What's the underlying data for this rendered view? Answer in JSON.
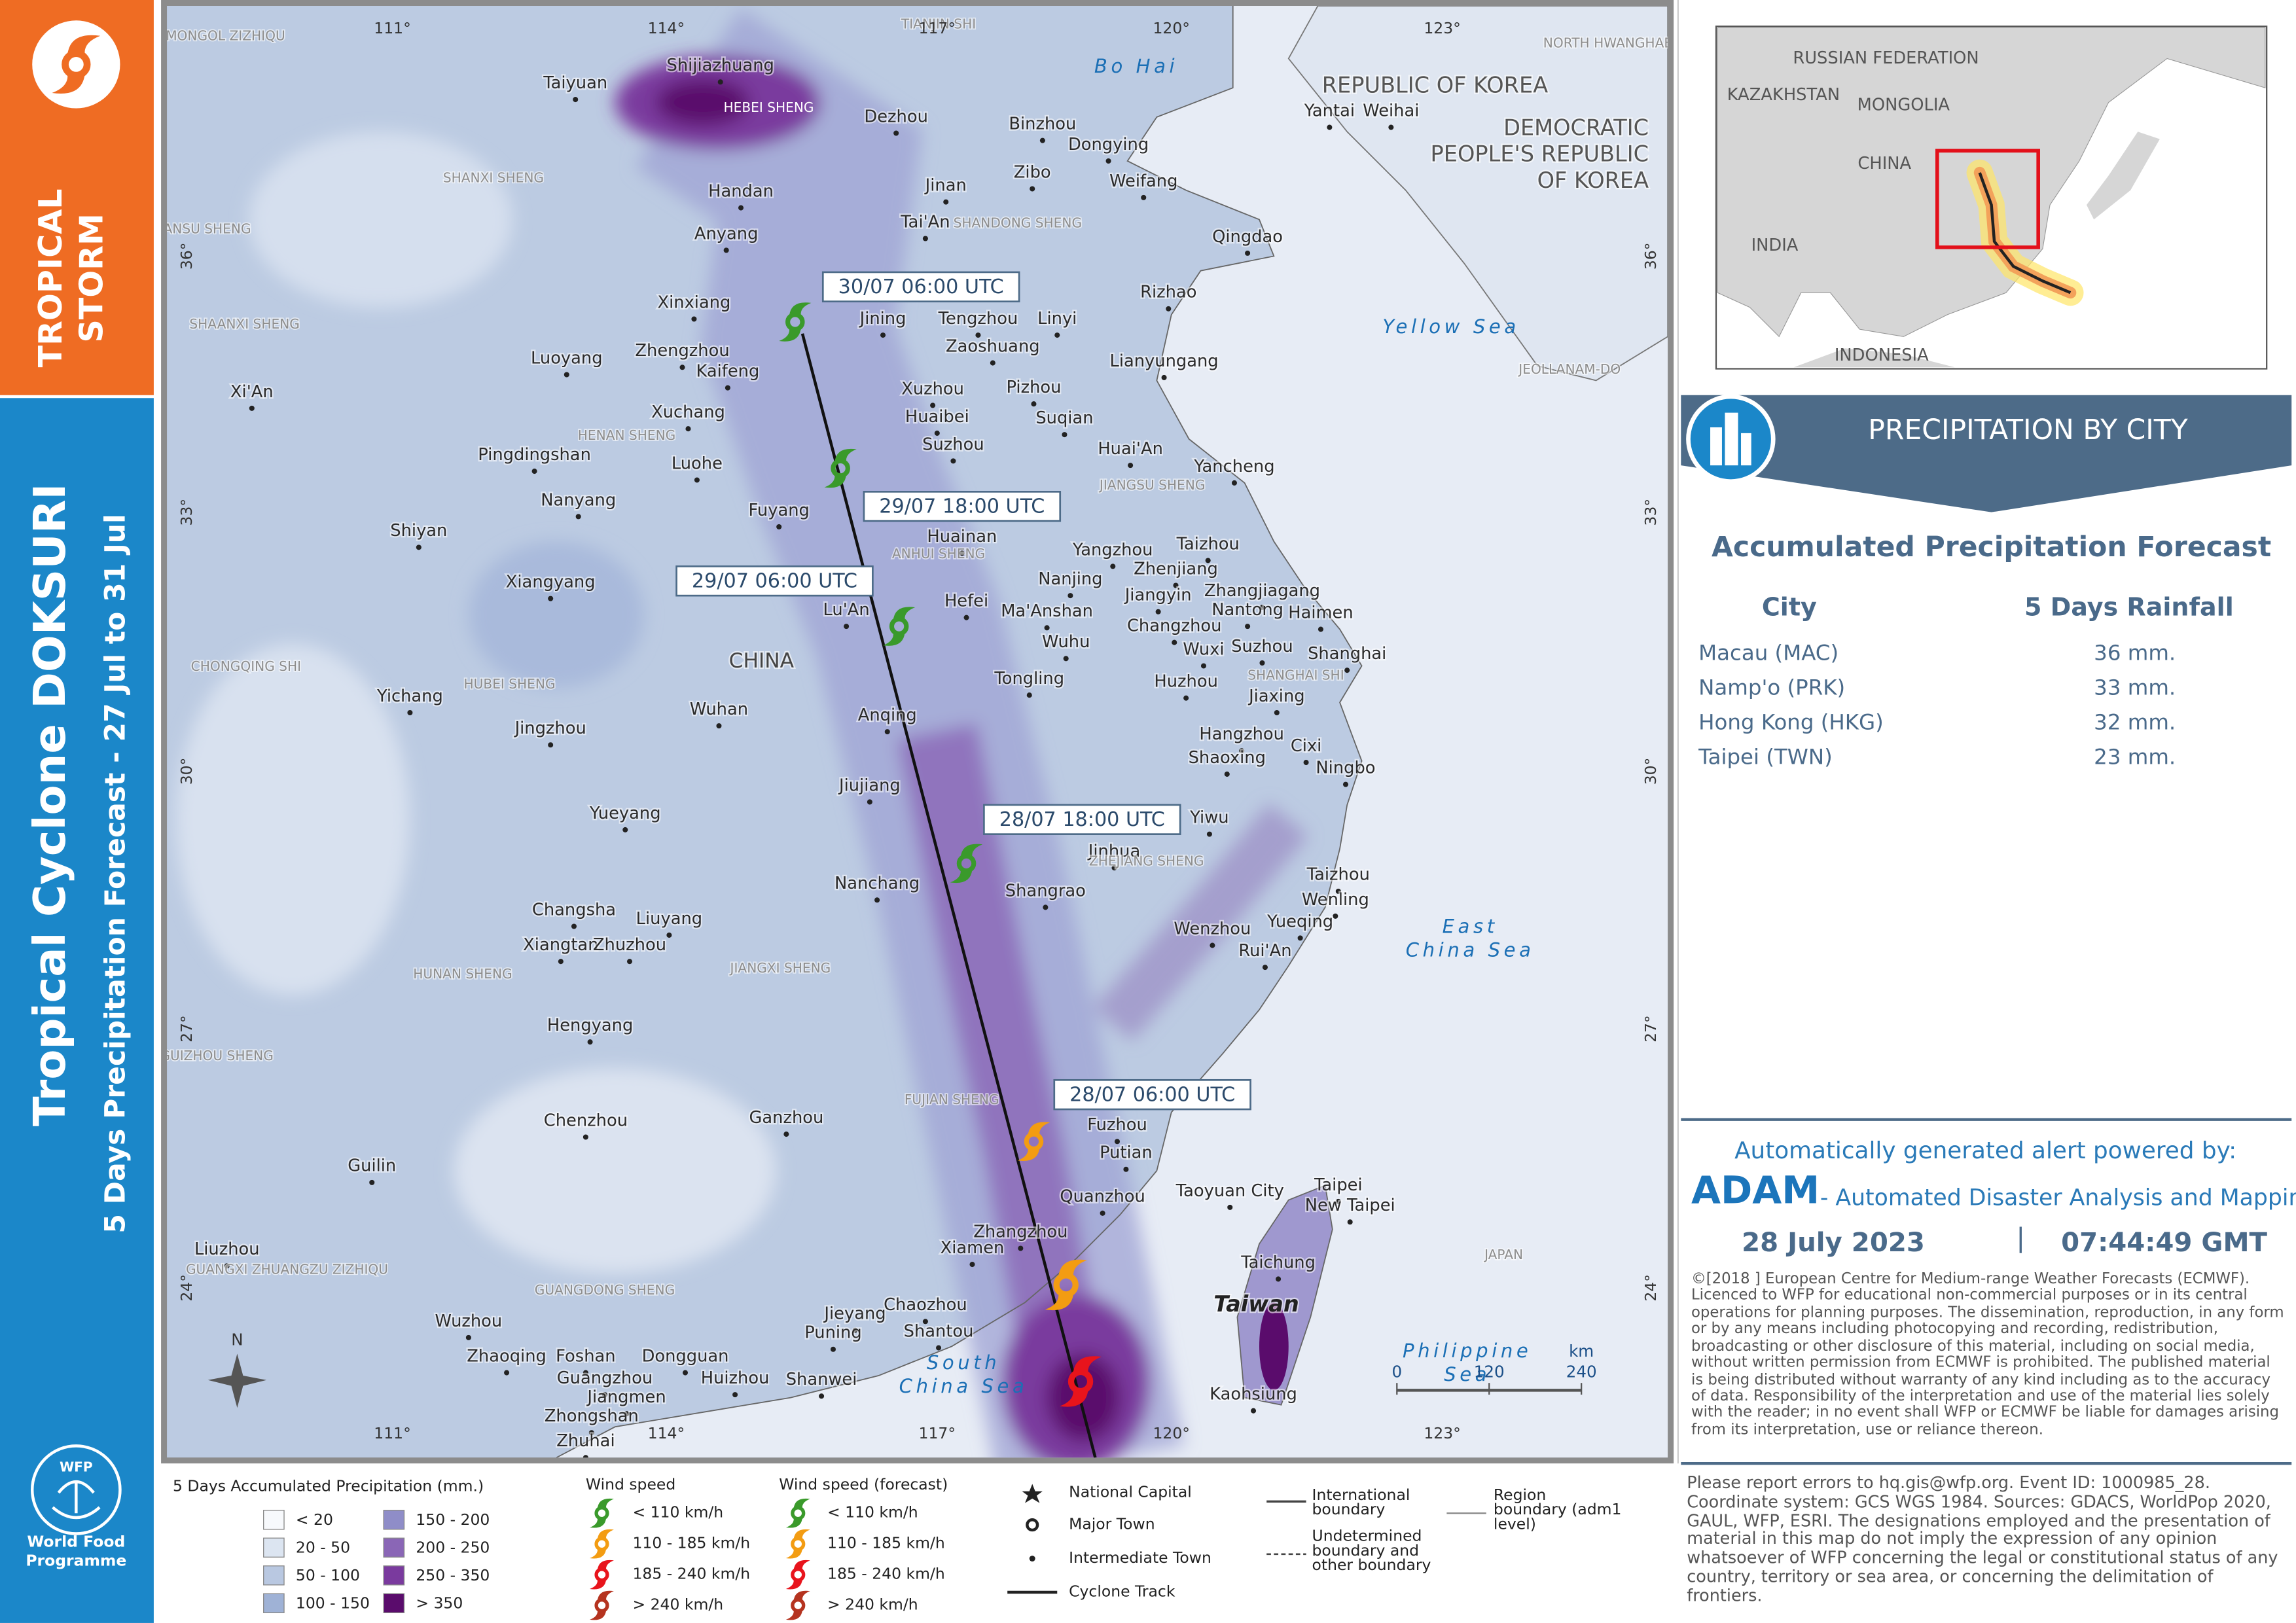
{
  "sidebar": {
    "category_lines": [
      "TROPICAL",
      "STORM"
    ],
    "title": "Tropical Cyclone DOKSURI",
    "subtitle": "5 Days Precipitation Forecast - 27 Jul to 31 Jul",
    "logo_text": "WFP",
    "org_lines": [
      "World Food",
      "Programme"
    ]
  },
  "map": {
    "lon_ticks": [
      "111°",
      "114°",
      "117°",
      "120°",
      "123°"
    ],
    "lat_ticks": [
      "36°",
      "33°",
      "30°",
      "27°",
      "24°"
    ],
    "cities": [
      "Taiyuan",
      "Shijiazhuang",
      "Dezhou",
      "Binzhou",
      "Dongying",
      "Yantai",
      "Weihai",
      "Handan",
      "Jinan",
      "Zibo",
      "Weifang",
      "Anyang",
      "Tai'An",
      "Qingdao",
      "Xinxiang",
      "Jining",
      "Tengzhou",
      "Linyi",
      "Rizhao",
      "Luoyang",
      "Zhengzhou",
      "Kaifeng",
      "Zaoshuang",
      "Lianyungang",
      "Xi'An",
      "Xuchang",
      "Xuzhou",
      "Pizhou",
      "Huaibei",
      "Suqian",
      "Suzhou",
      "Huai'An",
      "Pingdingshan",
      "Luohe",
      "Yancheng",
      "Nanyang",
      "Fuyang",
      "Shiyan",
      "Huainan",
      "Taizhou",
      "Yangzhou",
      "Zhenjiang",
      "Xiangyang",
      "Nanjing",
      "Ma'Anshan",
      "Jiangyin",
      "Zhangjiagang",
      "Nantong",
      "Haimen",
      "Lu'An",
      "Hefei",
      "Changzhou",
      "Wuhu",
      "Wuxi",
      "Suzhou",
      "Shanghai",
      "Tongling",
      "Huzhou",
      "Yichang",
      "Jiaxing",
      "Wuhan",
      "Anqing",
      "Jingzhou",
      "Hangzhou",
      "Shaoxing",
      "Cixi",
      "Ningbo",
      "Jiujiang",
      "Yiwu",
      "Yueyang",
      "Jinhua",
      "Nanchang",
      "Shangrao",
      "Taizhou",
      "Wenling",
      "Changsha",
      "Liuyang",
      "Wenzhou",
      "Yueqing",
      "Xiangtan",
      "Zhuzhou",
      "Rui'An",
      "Hengyang",
      "Chenzhou",
      "Ganzhou",
      "Fuzhou",
      "Putian",
      "Guilin",
      "Quanzhou",
      "Taoyuan City",
      "Taipei",
      "New Taipei",
      "Zhangzhou",
      "Xiamen",
      "Liuzhou",
      "Taichung",
      "Jieyang",
      "Chaozhou",
      "Puning",
      "Shantou",
      "Wuzhou",
      "Zhaoqing",
      "Foshan",
      "Dongguan",
      "Guangzhou",
      "Huizhou",
      "Shanwei",
      "Kaohsiung",
      "Jiangmen",
      "Zhongshan",
      "Zhuhai"
    ],
    "regions": [
      "HEBEI SHENG",
      "SHANXI SHENG",
      "SHANDONG SHENG",
      "HENAN SHENG",
      "ANHUI SHENG",
      "JIANGSU SHENG",
      "HUBEI SHENG",
      "SHANGHAI SHI",
      "CHONGQING SHI",
      "ZHEJIANG SHENG",
      "JIANGXI SHENG",
      "HUNAN SHENG",
      "FUJIAN SHENG",
      "GUIZHOU SHENG",
      "GUANGXI ZHUANGZU ZIZHIQU",
      "GUANGDONG SHENG",
      "SHAANXI SHENG",
      "GANSU SHENG",
      "NEI MONGOL ZIZHIQU",
      "TIANJIN SHI",
      "JEOLLANAM-DO",
      "NORTH HWANGHAE",
      "JAPAN"
    ],
    "countries": [
      [
        "CHINA"
      ],
      [
        "REPUBLIC OF KOREA"
      ],
      [
        "DEMOCRATIC",
        "PEOPLE'S REPUBLIC",
        "OF KOREA"
      ],
      [
        "Taiwan"
      ]
    ],
    "seas": [
      [
        "Bo Hai"
      ],
      [
        "Yellow Sea"
      ],
      [
        "East",
        "China Sea"
      ],
      [
        "South",
        "China Sea"
      ],
      [
        "Philippine",
        "Sea"
      ]
    ],
    "track_labels": [
      "30/07 06:00 UTC",
      "29/07 18:00 UTC",
      "29/07 06:00 UTC",
      "28/07 18:00 UTC",
      "28/07 06:00 UTC"
    ],
    "north": "N",
    "scale_unit": "km",
    "scale_ticks": [
      "0",
      "120",
      "240"
    ]
  },
  "inset": {
    "labels": [
      "RUSSIAN FEDERATION",
      "KAZAKHSTAN",
      "MONGOLIA",
      "CHINA",
      "INDIA",
      "INDONESIA"
    ]
  },
  "city_panel": {
    "title": "PRECIPITATION BY CITY",
    "subtitle": "Accumulated Precipitation Forecast",
    "columns": [
      "City",
      "5 Days Rainfall"
    ],
    "rows": [
      [
        "Macau (MAC)",
        "36 mm."
      ],
      [
        "Namp'o (PRK)",
        "33 mm."
      ],
      [
        "Hong Kong (HKG)",
        "32 mm."
      ],
      [
        "Taipei (TWN)",
        "23 mm."
      ]
    ]
  },
  "alert": {
    "intro": "Automatically generated alert powered by:",
    "brand": "ADAM",
    "brand_desc": "- Automated Disaster Analysis and Mapping",
    "date": "28 July 2023",
    "separator": "|",
    "time": "07:44:49 GMT",
    "copyright": "©[2018 ]  European Centre for Medium-range Weather Forecasts (ECMWF). Licenced to WFP for educational non-commercial purposes or in its central operations for planning purposes. The dissemination, reproduction, in any form or by any means including photocopying and recording, redistribution, broadcasting or other disclosure of this material, including on social media, without written permission from ECMWF is prohibited. The published material is being distributed without warranty of any kind including as to the accuracy of data. Responsibility of the interpretation and use of the material lies solely with the reader; in no event shall WFP or ECMWF be liable for damages arising from its interpretation, use or reliance thereon."
  },
  "legend": {
    "precip_title": "5 Days Accumulated Precipitation (mm.)",
    "precip_classes": [
      {
        "label": "< 20",
        "color": "#f7f9fc"
      },
      {
        "label": "20 - 50",
        "color": "#dce5f1"
      },
      {
        "label": "50 - 100",
        "color": "#b9c8e1"
      },
      {
        "label": "100 - 150",
        "color": "#9fb2d6"
      },
      {
        "label": "150 - 200",
        "color": "#8f8dc8"
      },
      {
        "label": "200 - 250",
        "color": "#8a66b6"
      },
      {
        "label": "250 - 350",
        "color": "#7a3a9e"
      },
      {
        "label": "> 350",
        "color": "#5a0c6c"
      }
    ],
    "wind_title": "Wind speed",
    "wind_forecast_title": "Wind speed (forecast)",
    "wind_classes": [
      {
        "label": "< 110 km/h",
        "color": "#3a9a2b"
      },
      {
        "label": "110 - 185 km/h",
        "color": "#f39c12"
      },
      {
        "label": "185 - 240 km/h",
        "color": "#e8141c"
      },
      {
        "label": "> 240 km/h",
        "color": "#b5331f"
      }
    ],
    "symbols": [
      [
        "National Capital"
      ],
      [
        "Major Town"
      ],
      [
        "Intermediate Town"
      ],
      [
        "Cyclone Track"
      ],
      [
        "International",
        "boundary"
      ],
      [
        "Undetermined",
        "boundary and",
        "other boundary"
      ],
      [
        "Region",
        "boundary (adm1",
        "level)"
      ]
    ]
  },
  "footer": "Please report errors to hq.gis@wfp.org. Event ID: 1000985_28. Coordinate system: GCS WGS 1984. Sources: GDACS, WorldPop 2020, GAUL, WFP, ESRI. The designations employed and the presentation of material in this map do not imply the expression of any opinion whatsoever of WFP concerning the legal or constitutional status of any country, territory or sea area, or concerning the delimitation of frontiers."
}
